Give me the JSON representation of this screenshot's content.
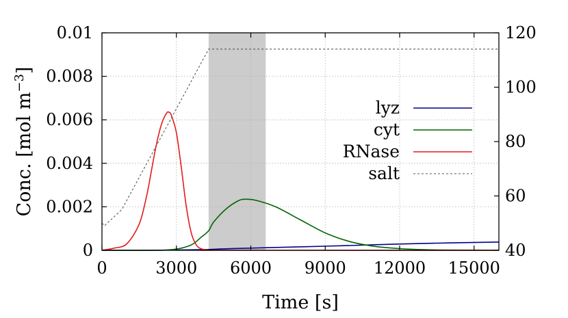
{
  "chart_data": {
    "type": "line",
    "xlabel": "Time [s]",
    "ylabel": "Conc. [mol m−3]",
    "ylabel_parts": {
      "main": "Conc. [mol m",
      "sup": "−3",
      "close": "]"
    },
    "xlim": [
      0,
      16000
    ],
    "ylim": [
      0,
      0.01
    ],
    "y2lim": [
      40,
      120
    ],
    "xticks": [
      0,
      3000,
      6000,
      9000,
      12000,
      15000
    ],
    "xtick_labels": [
      "0",
      "3000",
      "6000",
      "9000",
      "12000",
      "15000"
    ],
    "yticks": [
      0,
      0.002,
      0.004,
      0.006,
      0.008,
      0.01
    ],
    "ytick_labels": [
      "0",
      "0.002",
      "0.004",
      "0.006",
      "0.008",
      "0.01"
    ],
    "y2ticks": [
      40,
      60,
      80,
      100,
      120
    ],
    "y2tick_labels": [
      "40",
      "60",
      "80",
      "100",
      "120"
    ],
    "grid": true,
    "legend_position": "right",
    "shaded_region": {
      "x": [
        4300,
        6600
      ],
      "color": "#cccccc"
    },
    "series": [
      {
        "name": "lyz",
        "color": "#00008b",
        "dash": false,
        "axis": "y",
        "x": [
          0,
          2000,
          4000,
          5000,
          6000,
          8000,
          10000,
          12000,
          14000,
          16000
        ],
        "y": [
          0,
          0,
          3e-05,
          7e-05,
          0.0001,
          0.00016,
          0.00022,
          0.00029,
          0.00034,
          0.00038
        ]
      },
      {
        "name": "cyt",
        "color": "#006400",
        "dash": false,
        "axis": "y",
        "x": [
          0,
          2500,
          3500,
          4000,
          4300,
          4500,
          5000,
          5500,
          5800,
          6200,
          7000,
          8000,
          9000,
          10000,
          11000,
          12000,
          13000,
          14000,
          16000
        ],
        "y": [
          0,
          1e-05,
          0.0002,
          0.0006,
          0.0009,
          0.0013,
          0.0019,
          0.00228,
          0.00235,
          0.0023,
          0.002,
          0.0014,
          0.0008,
          0.0004,
          0.00018,
          8e-05,
          3e-05,
          1e-05,
          0
        ]
      },
      {
        "name": "RNase",
        "color": "#e31a1c",
        "dash": false,
        "axis": "y",
        "x": [
          0,
          500,
          1000,
          1500,
          1800,
          2000,
          2200,
          2400,
          2600,
          2700,
          2800,
          3000,
          3200,
          3400,
          3600,
          3800,
          4000,
          4300,
          5000,
          16000
        ],
        "y": [
          0,
          0.0001,
          0.0003,
          0.0012,
          0.0025,
          0.0037,
          0.0049,
          0.0058,
          0.0063,
          0.00635,
          0.0062,
          0.0054,
          0.0038,
          0.002,
          0.0008,
          0.00025,
          7e-05,
          1e-05,
          0,
          0
        ]
      },
      {
        "name": "salt",
        "color": "#555555",
        "dash": true,
        "axis": "y2",
        "x": [
          0,
          100,
          800,
          4300,
          16000
        ],
        "y": [
          50,
          49,
          55,
          114,
          114
        ]
      }
    ]
  }
}
